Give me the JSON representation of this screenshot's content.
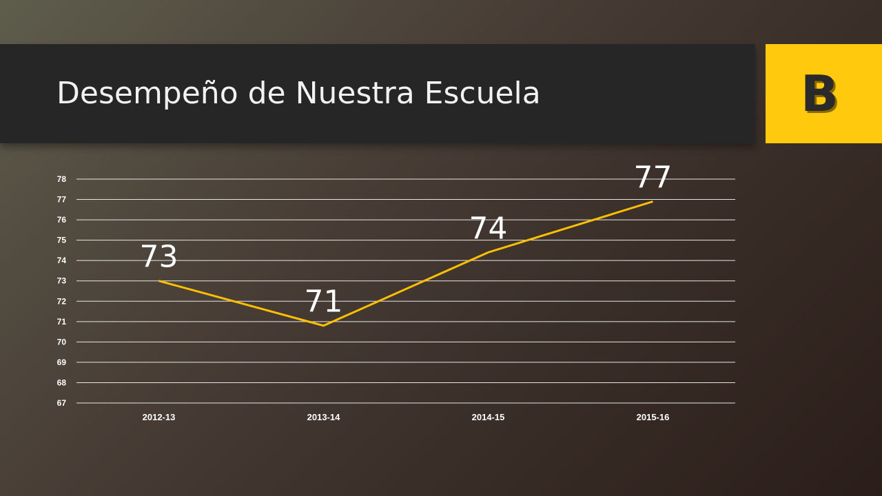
{
  "slide": {
    "title": "Desempeño de Nuestra Escuela",
    "grade": "B",
    "accent_color": "#ffc90e",
    "title_bar_color": "#262626"
  },
  "chart_data": {
    "type": "line",
    "categories": [
      "2012-13",
      "2013-14",
      "2014-15",
      "2015-16"
    ],
    "series": [
      {
        "values": [
          73,
          70.8,
          74.4,
          76.9
        ],
        "data_labels": [
          "73",
          "71",
          "74",
          "77"
        ],
        "color": "#ffc000"
      }
    ],
    "title": "",
    "xlabel": "",
    "ylabel": "",
    "ylim": [
      67,
      78
    ],
    "yticks": [
      "67",
      "68",
      "69",
      "70",
      "71",
      "72",
      "73",
      "74",
      "75",
      "76",
      "77",
      "78"
    ],
    "grid": true,
    "legend": "none"
  }
}
